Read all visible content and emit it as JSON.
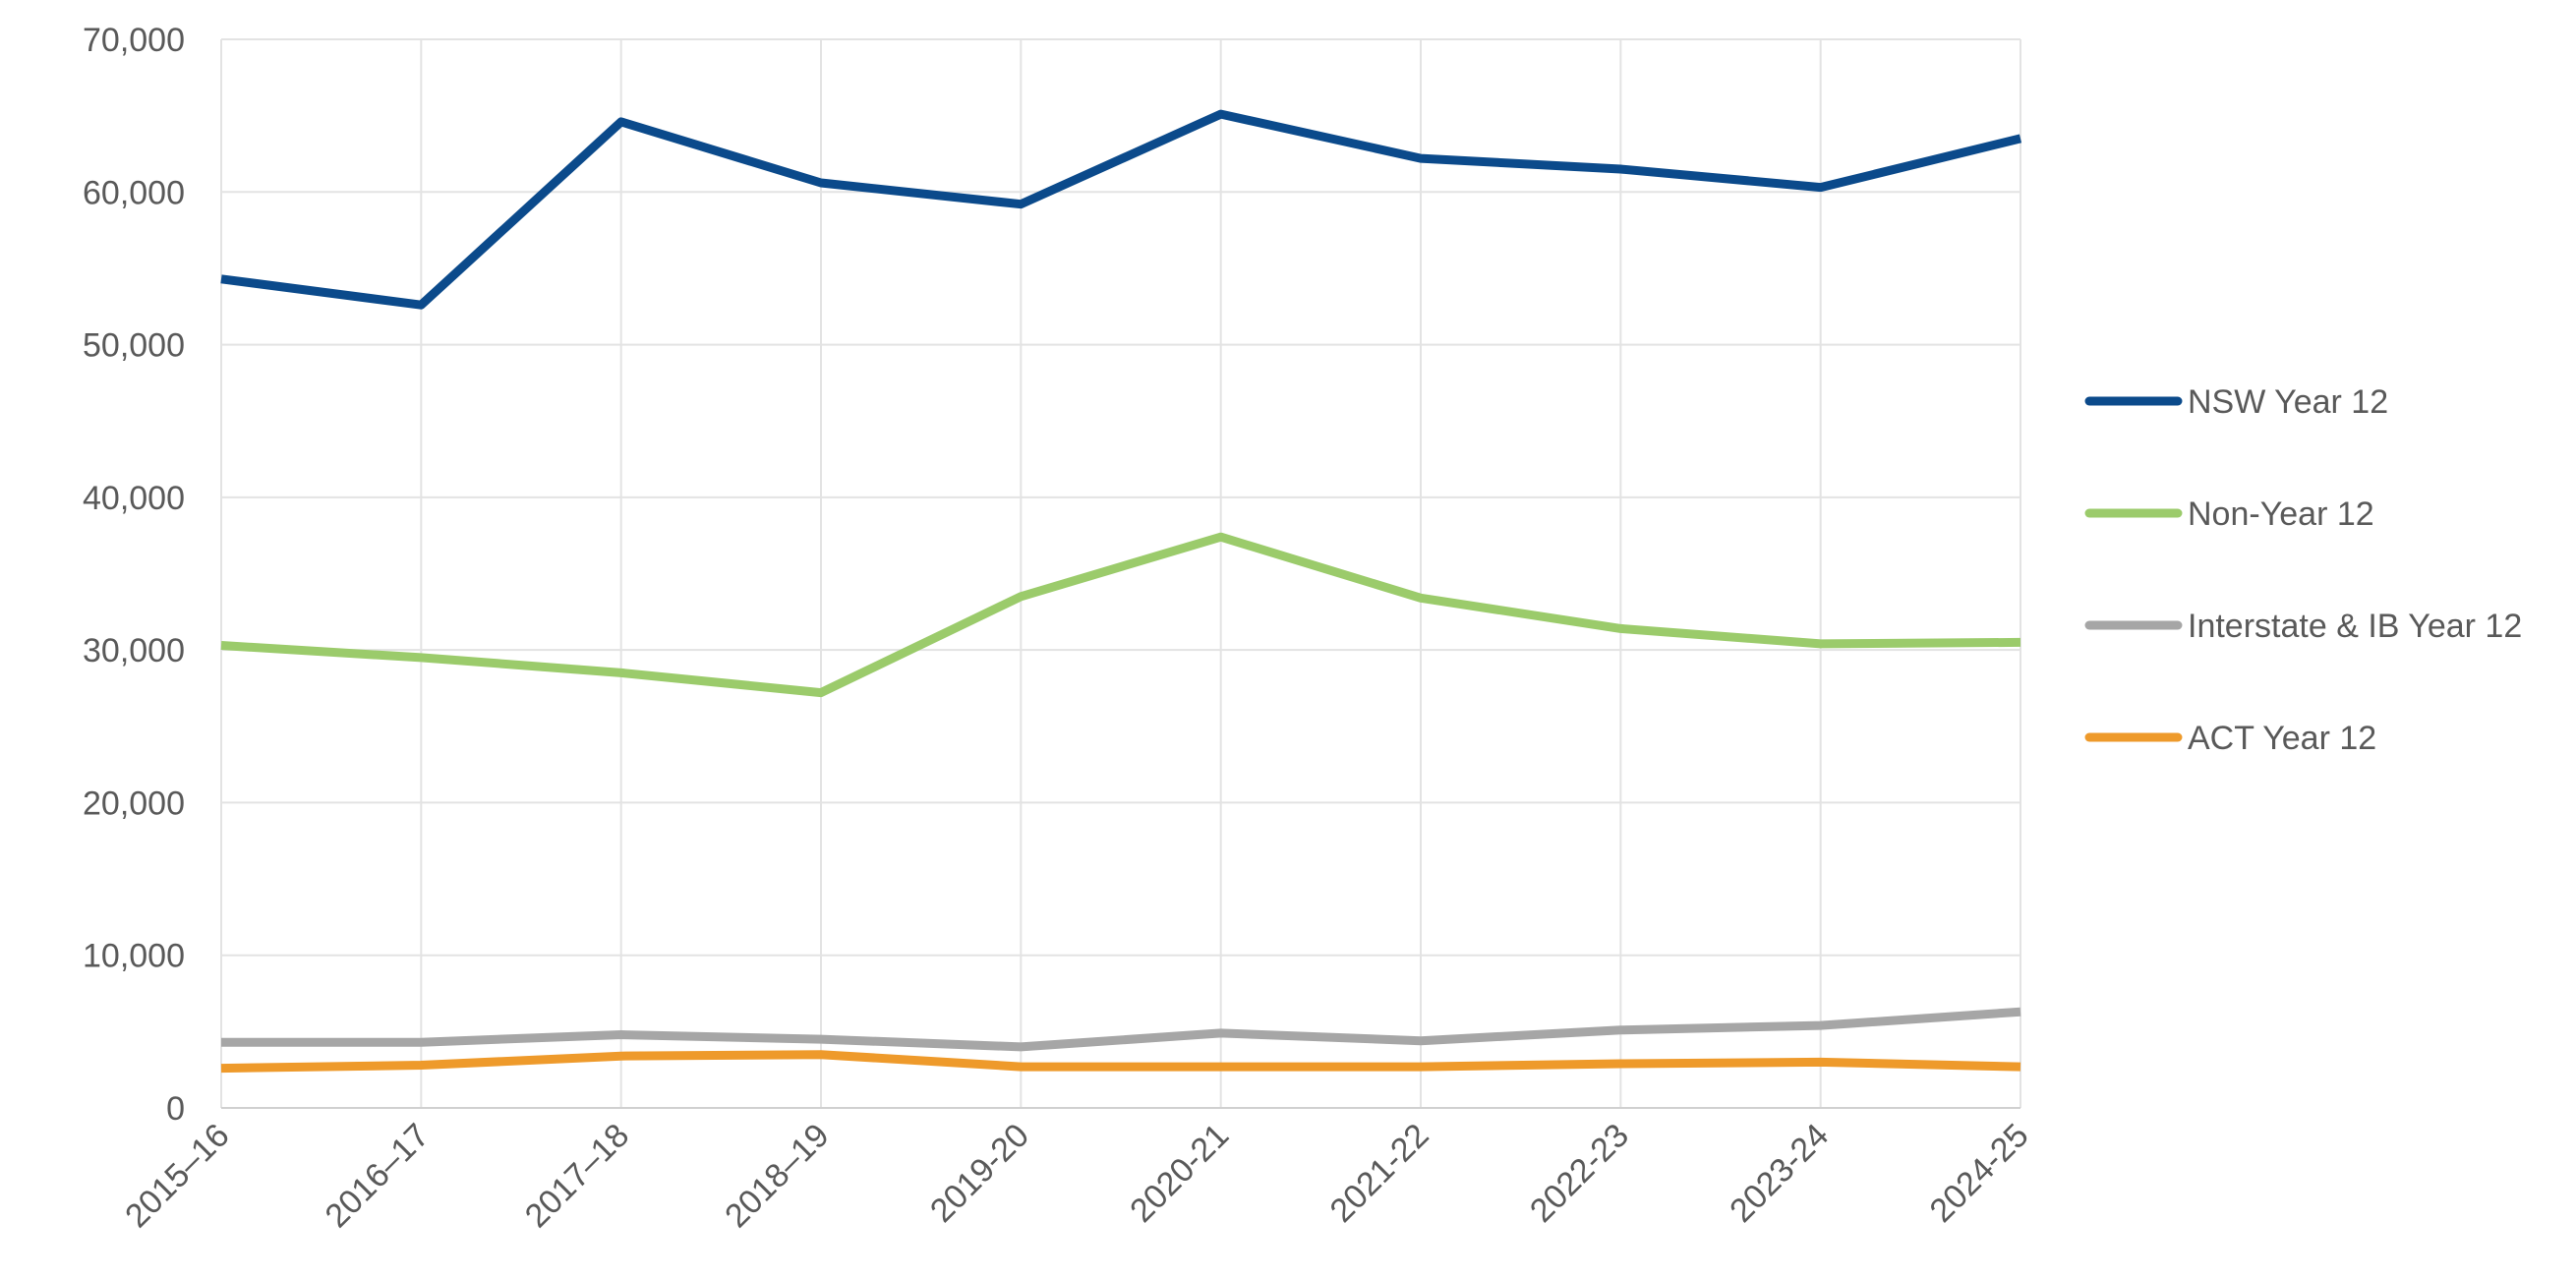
{
  "chart_data": {
    "type": "line",
    "title": "",
    "xlabel": "",
    "ylabel": "",
    "categories": [
      "2015–16",
      "2016–17",
      "2017–18",
      "2018–19",
      "2019-20",
      "2020-21",
      "2021-22",
      "2022-23",
      "2023-24",
      "2024-25"
    ],
    "y_ticks": [
      "0",
      "10,000",
      "20,000",
      "30,000",
      "40,000",
      "50,000",
      "60,000",
      "70,000"
    ],
    "ylim": [
      0,
      70000
    ],
    "grid": true,
    "legend_position": "right",
    "series": [
      {
        "name": "NSW Year 12",
        "color": "#0B4A8B",
        "values": [
          54300,
          52600,
          64600,
          60600,
          59200,
          65100,
          62200,
          61500,
          60300,
          63500
        ]
      },
      {
        "name": "Non-Year 12",
        "color": "#9BCB6B",
        "values": [
          30300,
          29500,
          28500,
          27200,
          33500,
          37400,
          33400,
          31400,
          30400,
          30500
        ]
      },
      {
        "name": "Interstate & IB Year 12",
        "color": "#A6A6A6",
        "values": [
          4300,
          4300,
          4800,
          4500,
          4000,
          4900,
          4400,
          5100,
          5400,
          6300
        ]
      },
      {
        "name": "ACT Year 12",
        "color": "#EE9A2B",
        "values": [
          2600,
          2800,
          3400,
          3500,
          2700,
          2700,
          2700,
          2900,
          3000,
          2700
        ]
      }
    ]
  }
}
